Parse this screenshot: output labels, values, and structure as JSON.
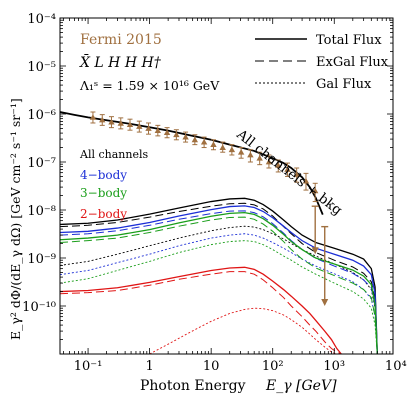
{
  "chart_data": {
    "type": "line",
    "xlabel": "Photon Energy",
    "xlabel_symbol": "E_γ [GeV]",
    "ylabel": "E_γ² dΦ/(dE_γ dΩ)  [GeV cm⁻² s⁻¹ sr⁻¹]",
    "x_scale": "log",
    "y_scale": "log",
    "xlim": [
      0.035,
      9000
    ],
    "ylim": [
      1e-11,
      0.0001
    ],
    "x_ticks": [
      {
        "v": 0.1,
        "label": "10⁻¹"
      },
      {
        "v": 1,
        "label": "1"
      },
      {
        "v": 10,
        "label": "10"
      },
      {
        "v": 100,
        "label": "10²"
      },
      {
        "v": 1000,
        "label": "10³"
      },
      {
        "v": 10000,
        "label": "10⁴"
      }
    ],
    "y_ticks": [
      {
        "v": 0.0001,
        "label": "10⁻⁴"
      },
      {
        "v": 1e-05,
        "label": "10⁻⁵"
      },
      {
        "v": 1e-06,
        "label": "10⁻⁶"
      },
      {
        "v": 1e-07,
        "label": "10⁻⁷"
      },
      {
        "v": 1e-08,
        "label": "10⁻⁸"
      },
      {
        "v": 1e-09,
        "label": "10⁻⁹"
      },
      {
        "v": 1e-10,
        "label": "10⁻¹⁰"
      }
    ],
    "data_label": "Fermi 2015",
    "model_label": "X̄ L H H H†",
    "param_label": "Λ₁ˢ = 1.59 × 10¹⁶ GeV",
    "legend": [
      {
        "label": "Total Flux",
        "dash": "solid"
      },
      {
        "label": "ExGal Flux",
        "dash": "dashed"
      },
      {
        "label": "Gal Flux",
        "dash": "dotted"
      }
    ],
    "channel_labels": [
      {
        "label": "All channels",
        "color": "#000000"
      },
      {
        "label": "4−body",
        "color": "#1c2fd6"
      },
      {
        "label": "3−body",
        "color": "#1a9e1a"
      },
      {
        "label": "2−body",
        "color": "#e01515"
      }
    ],
    "annotation": "All channels + bkg",
    "fermi_points": {
      "color": "#a07040",
      "x": [
        0.12,
        0.17,
        0.24,
        0.34,
        0.48,
        0.68,
        0.96,
        1.36,
        1.92,
        2.72,
        3.84,
        5.43,
        7.68,
        10.9,
        15.4,
        21.7,
        30.7,
        43.4,
        61.4,
        86.8,
        123,
        174,
        245,
        347,
        490
      ],
      "y": [
        8.5e-07,
        7.5e-07,
        6.8e-07,
        6.4e-07,
        6e-07,
        5.5e-07,
        5e-07,
        4.5e-07,
        4.1e-07,
        3.7e-07,
        3.3e-07,
        2.9e-07,
        2.6e-07,
        2.3e-07,
        2e-07,
        1.8e-07,
        1.6e-07,
        1.4e-07,
        1.2e-07,
        1e-07,
        8.5e-08,
        7e-08,
        5.5e-08,
        4e-08,
        2.5e-08
      ],
      "err_lo": [
        6.5e-07,
        5.8e-07,
        5.2e-07,
        4.9e-07,
        4.6e-07,
        4.2e-07,
        3.8e-07,
        3.5e-07,
        3.2e-07,
        2.9e-07,
        2.6e-07,
        2.3e-07,
        2e-07,
        1.8e-07,
        1.6e-07,
        1.4e-07,
        1.2e-07,
        1e-07,
        8.8e-08,
        7.5e-08,
        6.2e-08,
        5e-08,
        3.8e-08,
        2.6e-08,
        1.5e-08
      ],
      "err_hi": [
        1.1e-06,
        9.7e-07,
        8.8e-07,
        8.3e-07,
        7.8e-07,
        7.1e-07,
        6.5e-07,
        5.8e-07,
        5.2e-07,
        4.7e-07,
        4.2e-07,
        3.7e-07,
        3.3e-07,
        2.9e-07,
        2.6e-07,
        2.3e-07,
        2e-07,
        1.8e-07,
        1.6e-07,
        1.4e-07,
        1.1e-07,
        9.5e-08,
        7.5e-08,
        5.8e-08,
        3.6e-08
      ]
    },
    "upper_limits": {
      "color": "#a07040",
      "x": [
        490,
        700
      ],
      "y_top": [
        1.2e-08,
        4.5e-09
      ],
      "y_bottom": [
        1.2e-09,
        1e-10
      ]
    },
    "total_bkg_curve": {
      "color": "#000000",
      "x": [
        0.035,
        0.06,
        0.1,
        0.2,
        0.5,
        1,
        2,
        5,
        10,
        20,
        50,
        100,
        150,
        200,
        300,
        400,
        500,
        650
      ],
      "y": [
        1.1e-06,
        9.6e-07,
        8.5e-07,
        7.4e-07,
        6.2e-07,
        5.3e-07,
        4.5e-07,
        3.5e-07,
        2.9e-07,
        2.3e-07,
        1.7e-07,
        1.2e-07,
        9.5e-08,
        7.5e-08,
        4.8e-08,
        3e-08,
        1.8e-08,
        8e-09
      ]
    },
    "series": [
      {
        "name": "All channels",
        "color": "#000000",
        "dash": "solid",
        "x": [
          0.035,
          0.1,
          0.3,
          1,
          3,
          10,
          20,
          35,
          50,
          70,
          100,
          150,
          200,
          300,
          500,
          1000,
          2000,
          3000,
          4000,
          4600,
          5000
        ],
        "y": [
          5e-09,
          5.3e-09,
          6.2e-09,
          8.2e-09,
          1.1e-08,
          1.5e-08,
          1.7e-08,
          1.75e-08,
          1.6e-08,
          1.3e-08,
          9.5e-09,
          6.2e-09,
          4.5e-09,
          3e-09,
          2.1e-09,
          1.6e-09,
          1.2e-09,
          9.5e-10,
          6e-10,
          2.5e-10,
          1e-11
        ]
      },
      {
        "name": "All channels",
        "color": "#000000",
        "dash": "dashed",
        "x": [
          0.035,
          0.1,
          0.3,
          1,
          3,
          10,
          20,
          35,
          50,
          70,
          100,
          150,
          200,
          300,
          500,
          1000,
          2000,
          3000,
          4000,
          4600,
          5000
        ],
        "y": [
          4.5e-09,
          4.8e-09,
          5.5e-09,
          7.1e-09,
          9.3e-09,
          1.2e-08,
          1.35e-08,
          1.38e-08,
          1.28e-08,
          1.05e-08,
          7.5e-09,
          4.5e-09,
          3.2e-09,
          2e-09,
          1.3e-09,
          9e-10,
          6.5e-10,
          4.8e-10,
          3.2e-10,
          1.4e-10,
          1e-11
        ]
      },
      {
        "name": "All channels",
        "color": "#000000",
        "dash": "dotted",
        "x": [
          0.035,
          0.1,
          0.3,
          1,
          3,
          10,
          20,
          35,
          50,
          70,
          100,
          150,
          200,
          300,
          500,
          1000,
          2000,
          3000,
          4000,
          4600,
          5000
        ],
        "y": [
          7e-10,
          8.5e-10,
          1.2e-09,
          1.8e-09,
          2.6e-09,
          3.7e-09,
          4.3e-09,
          4.6e-09,
          4.4e-09,
          3.9e-09,
          3.2e-09,
          2.5e-09,
          2e-09,
          1.5e-09,
          1.1e-09,
          7.5e-10,
          5e-10,
          3.5e-10,
          2.2e-10,
          9e-11,
          1e-11
        ]
      },
      {
        "name": "4−body",
        "color": "#1c2fd6",
        "dash": "solid",
        "x": [
          0.035,
          0.1,
          0.3,
          1,
          3,
          10,
          20,
          35,
          50,
          70,
          100,
          150,
          200,
          300,
          500,
          1000,
          2000,
          3000,
          4000,
          4600,
          5000
        ],
        "y": [
          3.4e-09,
          3.6e-09,
          4.2e-09,
          5.5e-09,
          7.5e-09,
          1.02e-08,
          1.18e-08,
          1.22e-08,
          1.13e-08,
          9.3e-09,
          6.9e-09,
          4.6e-09,
          3.4e-09,
          2.3e-09,
          1.6e-09,
          1.2e-09,
          9e-10,
          6.8e-10,
          4.5e-10,
          1.8e-10,
          1e-11
        ]
      },
      {
        "name": "4−body",
        "color": "#1c2fd6",
        "dash": "dashed",
        "x": [
          0.035,
          0.1,
          0.3,
          1,
          3,
          10,
          20,
          35,
          50,
          70,
          100,
          150,
          200,
          300,
          500,
          1000,
          2000,
          3000,
          4000,
          4600,
          5000
        ],
        "y": [
          3e-09,
          3.2e-09,
          3.7e-09,
          4.8e-09,
          6.4e-09,
          8.4e-09,
          9.5e-09,
          9.6e-09,
          8.8e-09,
          7.2e-09,
          5.2e-09,
          3.3e-09,
          2.3e-09,
          1.5e-09,
          9.8e-10,
          6.8e-10,
          4.8e-10,
          3.5e-10,
          2.4e-10,
          1e-10,
          1e-11
        ]
      },
      {
        "name": "4−body",
        "color": "#1c2fd6",
        "dash": "dotted",
        "x": [
          0.035,
          0.1,
          0.3,
          1,
          3,
          10,
          20,
          35,
          50,
          70,
          100,
          150,
          200,
          300,
          500,
          1000,
          2000,
          3000,
          4000,
          4600,
          5000
        ],
        "y": [
          4.5e-10,
          5.5e-10,
          8e-10,
          1.2e-09,
          1.8e-09,
          2.6e-09,
          3e-09,
          3.2e-09,
          3e-09,
          2.6e-09,
          2.1e-09,
          1.6e-09,
          1.3e-09,
          9.5e-10,
          6.8e-10,
          4.7e-10,
          3.2e-10,
          2.2e-10,
          1.4e-10,
          6e-11,
          1e-11
        ]
      },
      {
        "name": "3−body",
        "color": "#1a9e1a",
        "dash": "solid",
        "x": [
          0.035,
          0.1,
          0.3,
          1,
          3,
          10,
          20,
          35,
          50,
          70,
          100,
          150,
          200,
          300,
          500,
          1000,
          2000,
          3000,
          4000,
          4600,
          5000
        ],
        "y": [
          2.4e-09,
          2.6e-09,
          3e-09,
          3.9e-09,
          5.4e-09,
          7.4e-09,
          8.5e-09,
          8.8e-09,
          8.1e-09,
          6.6e-09,
          4.8e-09,
          3.1e-09,
          2.2e-09,
          1.5e-09,
          1e-09,
          7.5e-10,
          5.6e-10,
          4.2e-10,
          2.8e-10,
          1.1e-10,
          1e-11
        ]
      },
      {
        "name": "3−body",
        "color": "#1a9e1a",
        "dash": "dashed",
        "x": [
          0.035,
          0.1,
          0.3,
          1,
          3,
          10,
          20,
          35,
          50,
          70,
          100,
          150,
          200,
          300,
          500,
          1000,
          2000,
          3000,
          4000,
          4600,
          5000
        ],
        "y": [
          2.1e-09,
          2.3e-09,
          2.6e-09,
          3.4e-09,
          4.6e-09,
          6.2e-09,
          7e-09,
          7.1e-09,
          6.4e-09,
          5.1e-09,
          3.6e-09,
          2.2e-09,
          1.5e-09,
          9.5e-10,
          6.2e-10,
          4.3e-10,
          3e-10,
          2.2e-10,
          1.5e-10,
          6e-11,
          1e-11
        ]
      },
      {
        "name": "3−body",
        "color": "#1a9e1a",
        "dash": "dotted",
        "x": [
          0.035,
          0.1,
          0.3,
          1,
          3,
          10,
          20,
          35,
          50,
          70,
          100,
          150,
          200,
          300,
          500,
          1000,
          2000,
          3000,
          4000,
          4600,
          5000
        ],
        "y": [
          3e-10,
          3.7e-10,
          5.5e-10,
          8.5e-10,
          1.3e-09,
          1.9e-09,
          2.2e-09,
          2.3e-09,
          2.2e-09,
          1.9e-09,
          1.5e-09,
          1.1e-09,
          9e-10,
          6.5e-10,
          4.6e-10,
          3e-10,
          2e-10,
          1.4e-10,
          9e-11,
          4e-11,
          1e-11
        ]
      },
      {
        "name": "2−body",
        "color": "#e01515",
        "dash": "solid",
        "x": [
          0.035,
          0.1,
          0.3,
          1,
          3,
          10,
          20,
          35,
          50,
          70,
          100,
          150,
          200,
          300,
          400,
          500,
          700,
          900,
          1100,
          1300
        ],
        "y": [
          2e-10,
          2.1e-10,
          2.4e-10,
          3.1e-10,
          4.1e-10,
          5.5e-10,
          6.2e-10,
          6.4e-10,
          5.8e-10,
          4.6e-10,
          3.3e-10,
          2.2e-10,
          1.6e-10,
          1e-10,
          7e-11,
          5e-11,
          3e-11,
          2e-11,
          1.3e-11,
          1e-11
        ]
      },
      {
        "name": "2−body",
        "color": "#e01515",
        "dash": "dashed",
        "x": [
          0.035,
          0.1,
          0.3,
          1,
          3,
          10,
          20,
          35,
          50,
          70,
          100,
          150,
          200,
          300,
          400,
          500,
          700,
          900,
          1100,
          1300
        ],
        "y": [
          1.8e-10,
          1.9e-10,
          2.1e-10,
          2.7e-10,
          3.6e-10,
          4.6e-10,
          5.2e-10,
          5.2e-10,
          4.6e-10,
          3.5e-10,
          2.4e-10,
          1.5e-10,
          1e-10,
          6e-11,
          4e-11,
          3e-11,
          1.8e-11,
          1.3e-11,
          1.1e-11,
          1e-11
        ]
      },
      {
        "name": "2−body",
        "color": "#e01515",
        "dash": "dotted",
        "x": [
          1,
          2,
          4,
          7,
          10,
          20,
          35,
          50,
          70,
          100,
          150,
          200,
          300,
          400,
          500,
          700,
          900,
          1100,
          1300
        ],
        "y": [
          1e-11,
          1.6e-11,
          2.6e-11,
          3.8e-11,
          4.8e-11,
          7e-11,
          8.5e-11,
          9e-11,
          8.8e-11,
          8e-11,
          6.5e-11,
          5.2e-11,
          3.6e-11,
          2.6e-11,
          2e-11,
          1.4e-11,
          1.1e-11,
          1e-11,
          1e-11
        ]
      }
    ]
  }
}
